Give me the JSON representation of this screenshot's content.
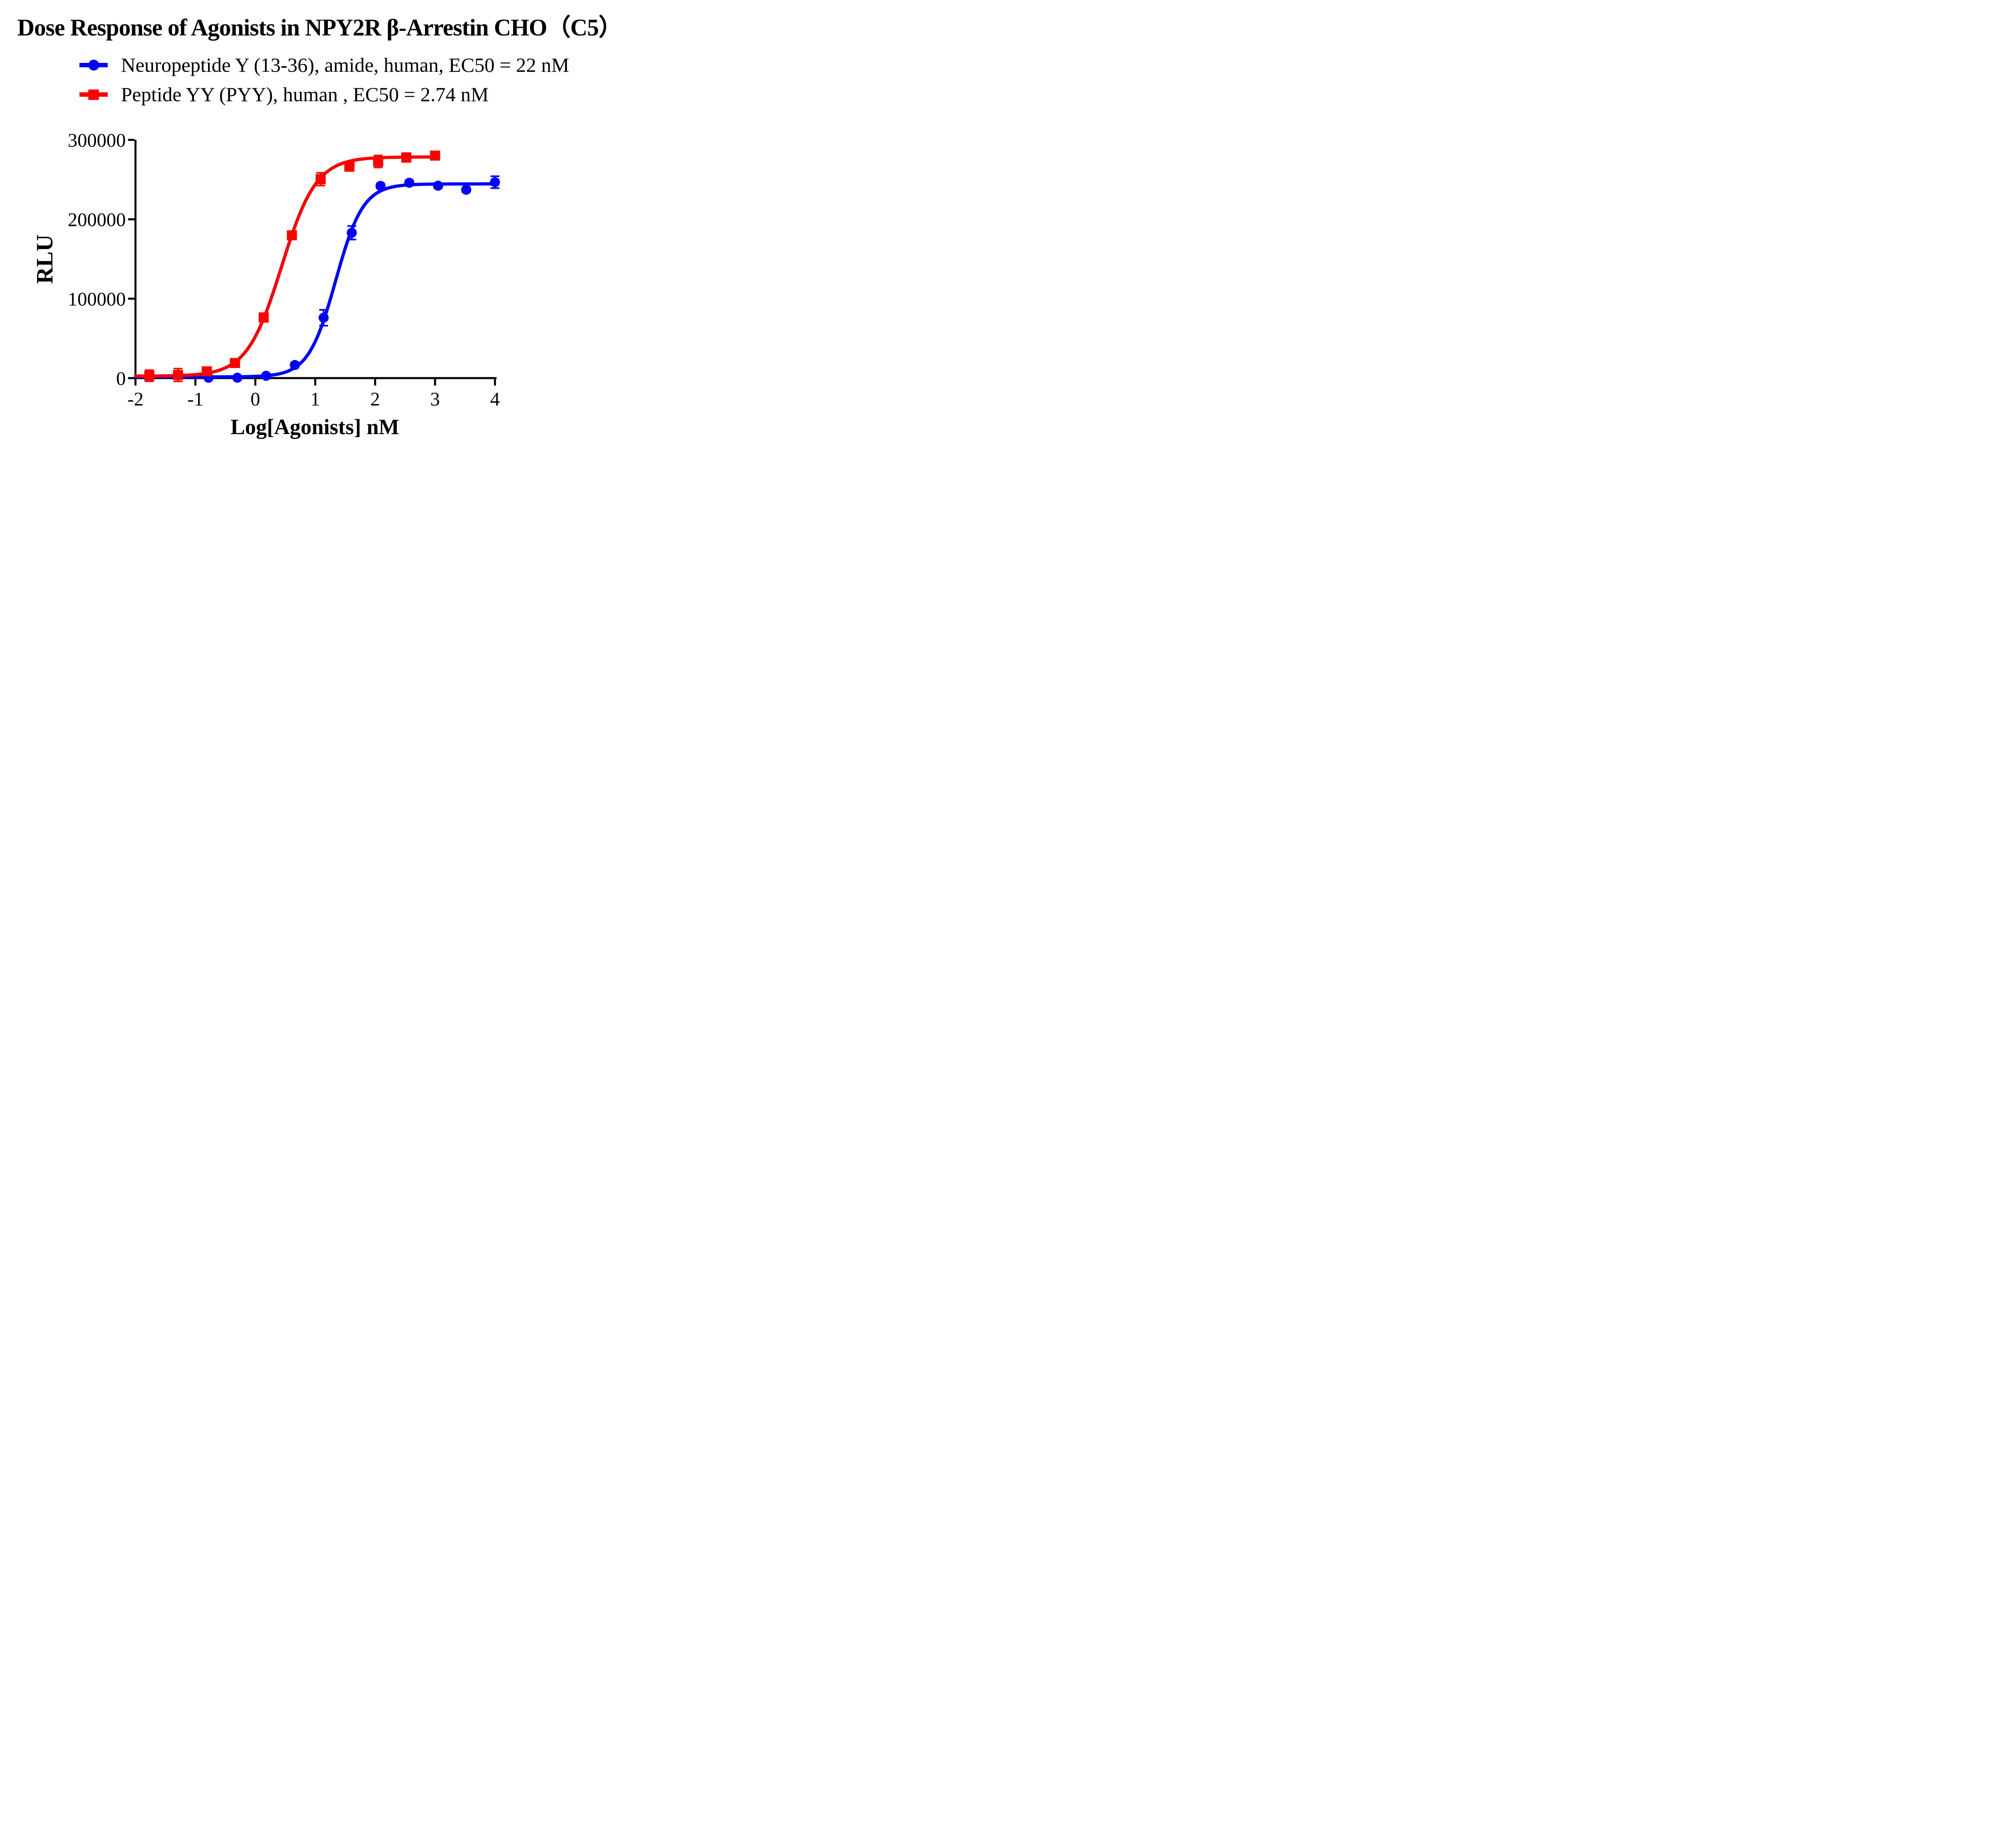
{
  "figure": {
    "background": "#FFFFFF",
    "axis_color": "#000000"
  },
  "chart_data": {
    "type": "scatter",
    "title": "Dose Response of Agonists in NPY2R β-Arrestin CHO（C5）",
    "xlabel": "Log[Agonists] nM",
    "ylabel": "RLU",
    "xlim": [
      -2,
      4
    ],
    "ylim": [
      0,
      300000
    ],
    "x_ticks": [
      -2,
      -1,
      0,
      1,
      2,
      3,
      4
    ],
    "y_ticks": [
      0,
      100000,
      200000,
      300000
    ],
    "grid": false,
    "legend_position": "top-left",
    "series": [
      {
        "name": "Neuropeptide Y (13-36), amide, human, EC50 = 22 nM",
        "color": "#0000FE",
        "marker": "circle",
        "ec50_nM": 22,
        "x": [
          -0.78,
          -0.3,
          0.18,
          0.66,
          1.14,
          1.61,
          2.09,
          2.57,
          3.05,
          3.52,
          4.0
        ],
        "y": [
          500,
          500,
          2900,
          16500,
          76000,
          183000,
          242000,
          246000,
          242300,
          237200,
          246700
        ],
        "err": [
          2000,
          2000,
          2500,
          3000,
          10000,
          8500,
          3000,
          3000,
          3000,
          3000,
          7500
        ],
        "fit": {
          "bottom": 1500,
          "top": 244500,
          "logEC50": 1.342,
          "hill": 1.9,
          "xmin": -2,
          "xmax": 4.0
        }
      },
      {
        "name": "Peptide YY (PYY), human , EC50 = 2.74 nM",
        "color": "#FB0100",
        "marker": "square",
        "ec50_nM": 2.74,
        "x": [
          -1.77,
          -1.29,
          -0.81,
          -0.34,
          0.14,
          0.61,
          1.09,
          1.57,
          2.05,
          2.52,
          3.0
        ],
        "y": [
          3000,
          3900,
          8500,
          19000,
          76300,
          179800,
          250500,
          266400,
          272800,
          277800,
          280200
        ],
        "err": [
          7000,
          8000,
          4000,
          4000,
          5500,
          4000,
          8000,
          5500,
          7500,
          5500,
          4000
        ],
        "fit": {
          "bottom": 2500,
          "top": 278500,
          "logEC50": 0.438,
          "hill": 1.5,
          "xmin": -2,
          "xmax": 3.0
        }
      }
    ]
  }
}
